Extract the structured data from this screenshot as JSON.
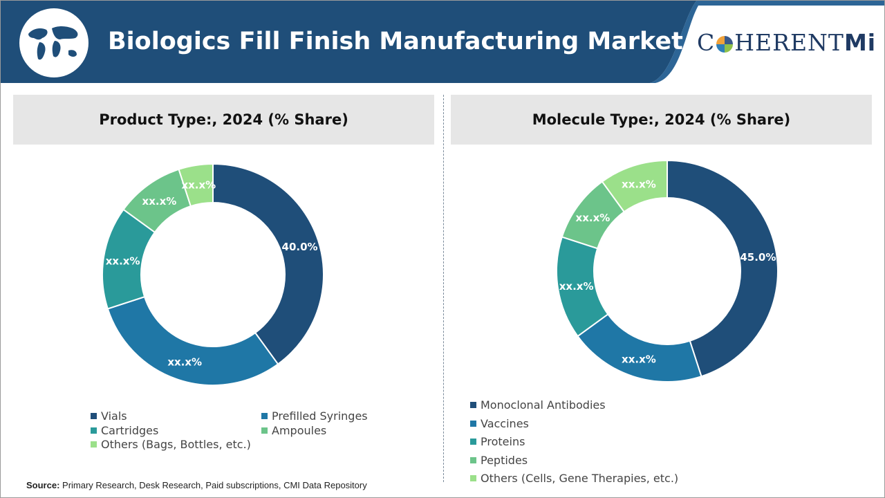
{
  "header": {
    "title": "Biologics Fill Finish Manufacturing Market"
  },
  "logo": {
    "left": "C",
    "right": "HERENT",
    "mi": "Mi"
  },
  "colors": {
    "header_bg": "#1f4e79",
    "s1": "#1f4e79",
    "s2": "#1f77a6",
    "s3": "#2a9a9a",
    "s4": "#6cc48a",
    "s5": "#9be08a"
  },
  "source": {
    "label": "Source:",
    "text": " Primary Research, Desk Research, Paid subscriptions, CMI Data Repository"
  },
  "chart_data": [
    {
      "type": "pie",
      "title": "Product Type:, 2024 (% Share)",
      "categories": [
        "Vials",
        "Prefilled Syringes",
        "Cartridges",
        "Ampoules",
        "Others (Bags, Bottles, etc.)"
      ],
      "values": [
        40.0,
        30.0,
        15.0,
        10.0,
        5.0
      ],
      "labels": [
        "40.0%",
        "xx.x%",
        "xx.x%",
        "xx.x%",
        "xx.x%"
      ],
      "colors": [
        "#1f4e79",
        "#1f77a6",
        "#2a9a9a",
        "#6cc48a",
        "#9be08a"
      ]
    },
    {
      "type": "pie",
      "title": "Molecule Type:, 2024 (% Share)",
      "categories": [
        "Monoclonal Antibodies",
        "Vaccines",
        "Proteins",
        "Peptides",
        "Others (Cells, Gene Therapies, etc.)"
      ],
      "values": [
        45.0,
        20.0,
        15.0,
        10.0,
        10.0
      ],
      "labels": [
        "45.0%",
        "xx.x%",
        "xx.x%",
        "xx.x%",
        "xx.x%"
      ],
      "colors": [
        "#1f4e79",
        "#1f77a6",
        "#2a9a9a",
        "#6cc48a",
        "#9be08a"
      ]
    }
  ]
}
